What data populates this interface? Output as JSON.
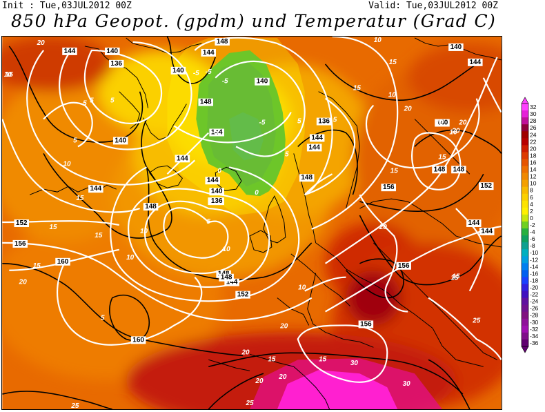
{
  "header": {
    "init": "Init : Tue,03JUL2012 00Z",
    "valid": "Valid: Tue,03JUL2012 00Z",
    "title": "850 hPa Geopot. (gpdm) und Temperatur (Grad C)"
  },
  "legend": {
    "values": [
      "32",
      "30",
      "28",
      "26",
      "24",
      "22",
      "20",
      "18",
      "16",
      "14",
      "12",
      "10",
      "8",
      "6",
      "4",
      "2",
      "0",
      "-2",
      "-4",
      "-6",
      "-8",
      "-10",
      "-12",
      "-14",
      "-16",
      "-18",
      "-20",
      "-22",
      "-24",
      "-26",
      "-28",
      "-30",
      "-32",
      "-34",
      "-36"
    ],
    "colors": [
      "#ff40ff",
      "#e620d8",
      "#c0109a",
      "#90003a",
      "#a00000",
      "#b80000",
      "#cf1d00",
      "#dd3a00",
      "#e65500",
      "#ee7000",
      "#f08800",
      "#f4a000",
      "#f8bb00",
      "#fbd000",
      "#fde300",
      "#fff000",
      "#c8e60c",
      "#70d020",
      "#28b040",
      "#10a060",
      "#10a090",
      "#00b0c0",
      "#00a0e0",
      "#0080f0",
      "#0060f0",
      "#1a40ff",
      "#3020e0",
      "#4010c0",
      "#6010a0",
      "#701090",
      "#801080",
      "#90109a",
      "#a010b0",
      "#80108a",
      "#600070"
    ]
  },
  "map": {
    "geopotential_labels": [
      {
        "text": "144"
      },
      {
        "text": "140"
      },
      {
        "text": "136"
      },
      {
        "text": "140"
      },
      {
        "text": "144"
      },
      {
        "text": "148"
      },
      {
        "text": "140"
      },
      {
        "text": "148"
      },
      {
        "text": "144"
      },
      {
        "text": "144"
      },
      {
        "text": "140"
      },
      {
        "text": "136"
      },
      {
        "text": "140"
      },
      {
        "text": "144"
      },
      {
        "text": "148"
      },
      {
        "text": "136"
      },
      {
        "text": "144"
      },
      {
        "text": "148"
      },
      {
        "text": "144"
      },
      {
        "text": "140"
      },
      {
        "text": "144"
      },
      {
        "text": "148"
      },
      {
        "text": "156"
      },
      {
        "text": "152"
      },
      {
        "text": "144"
      },
      {
        "text": "144"
      },
      {
        "text": "148"
      },
      {
        "text": "140"
      },
      {
        "text": "136"
      },
      {
        "text": "144"
      },
      {
        "text": "148"
      },
      {
        "text": "152"
      },
      {
        "text": "152"
      },
      {
        "text": "156"
      },
      {
        "text": "160"
      },
      {
        "text": "160"
      },
      {
        "text": "156"
      },
      {
        "text": "156"
      },
      {
        "text": "148"
      },
      {
        "text": "144"
      }
    ],
    "temperature_labels": [
      {
        "text": "20"
      },
      {
        "text": "15"
      },
      {
        "text": "10"
      },
      {
        "text": "5"
      },
      {
        "text": "5"
      },
      {
        "text": "5"
      },
      {
        "text": "5"
      },
      {
        "text": "10"
      },
      {
        "text": "-5"
      },
      {
        "text": "-5"
      },
      {
        "text": "-5"
      },
      {
        "text": "-5"
      },
      {
        "text": "-5"
      },
      {
        "text": "5"
      },
      {
        "text": "0"
      },
      {
        "text": "0"
      },
      {
        "text": "5"
      },
      {
        "text": "10"
      },
      {
        "text": "10"
      },
      {
        "text": "15"
      },
      {
        "text": "15"
      },
      {
        "text": "15"
      },
      {
        "text": "10"
      },
      {
        "text": "5"
      },
      {
        "text": "15"
      },
      {
        "text": "10"
      },
      {
        "text": "10"
      },
      {
        "text": "5"
      },
      {
        "text": "10"
      },
      {
        "text": "15"
      },
      {
        "text": "20"
      },
      {
        "text": "20"
      },
      {
        "text": "15"
      },
      {
        "text": "15"
      },
      {
        "text": "20"
      },
      {
        "text": "20"
      },
      {
        "text": "25"
      },
      {
        "text": "25"
      },
      {
        "text": "30"
      },
      {
        "text": "25"
      },
      {
        "text": "30"
      },
      {
        "text": "20"
      },
      {
        "text": "20"
      },
      {
        "text": "20"
      },
      {
        "text": "5"
      },
      {
        "text": "15"
      },
      {
        "text": "15"
      },
      {
        "text": "10"
      },
      {
        "text": "15"
      },
      {
        "text": "16"
      },
      {
        "text": "20"
      },
      {
        "text": "20"
      },
      {
        "text": "15"
      },
      {
        "text": "15"
      }
    ]
  }
}
